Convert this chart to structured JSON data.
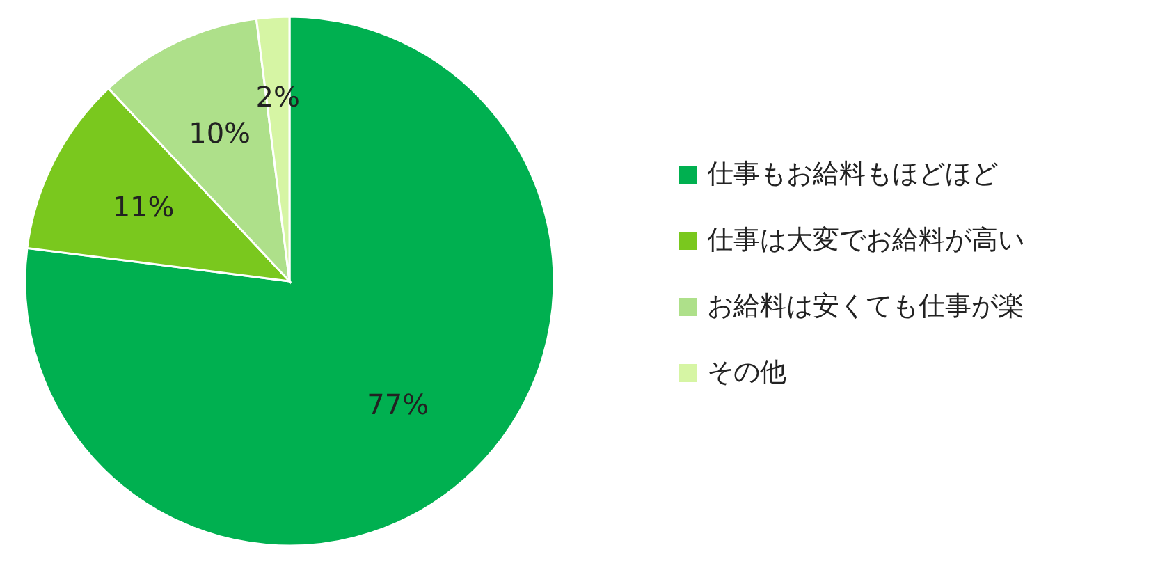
{
  "chart_data": {
    "type": "pie",
    "categories": [
      "仕事もお給料もほどほど",
      "仕事は大変でお給料が高い",
      "お給料は安くても仕事が楽",
      "その他"
    ],
    "values": [
      77,
      11,
      10,
      2
    ],
    "colors": [
      "#00b050",
      "#7ac81e",
      "#aee08a",
      "#d6f5a4"
    ],
    "value_labels": [
      "77%",
      "11%",
      "10%",
      "2%"
    ],
    "legend": "right"
  }
}
